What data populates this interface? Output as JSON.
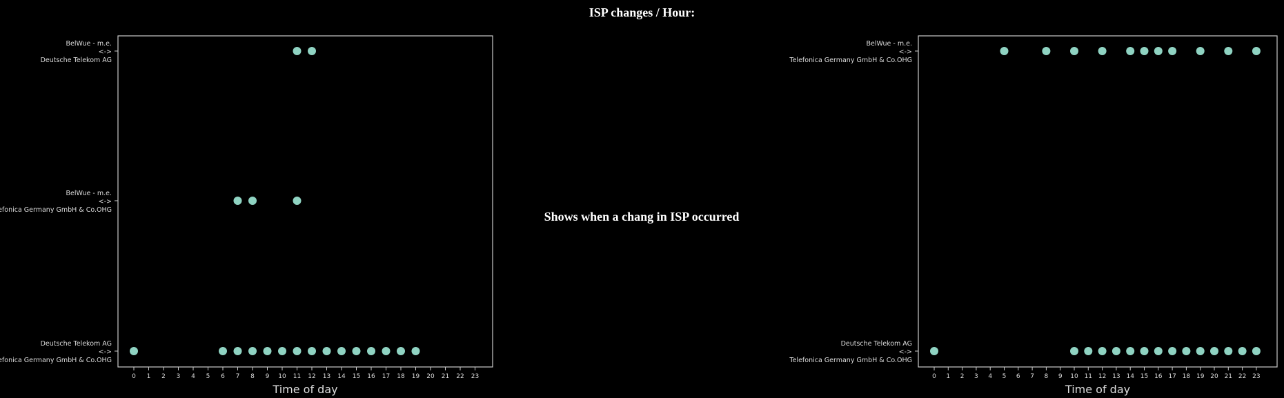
{
  "title": "ISP changes / Hour:",
  "center_text": "Shows when a chang in ISP occurred",
  "colors": {
    "background": "#000000",
    "axis": "#cccccc",
    "text": "#dddddd",
    "marker": "#8fd3c2"
  },
  "chart_data": [
    {
      "type": "scatter",
      "xlabel": "Time of day",
      "ylabel": "",
      "xlim": [
        -1,
        23
      ],
      "xticks": [
        "0",
        "1",
        "2",
        "3",
        "4",
        "5",
        "6",
        "7",
        "8",
        "9",
        "10",
        "11",
        "12",
        "13",
        "14",
        "15",
        "16",
        "17",
        "18",
        "19",
        "20",
        "21",
        "22",
        "23"
      ],
      "categories": [
        [
          "BelWue - m.e.",
          "<->",
          "Deutsche Telekom AG"
        ],
        [
          "BelWue - m.e.",
          "<->",
          "Telefonica Germany GmbH & Co.OHG"
        ],
        [
          "Deutsche Telekom AG",
          "<->",
          "Telefonica Germany GmbH & Co.OHG"
        ]
      ],
      "series": [
        {
          "category_index": 0,
          "x": [
            11,
            12
          ]
        },
        {
          "category_index": 1,
          "x": [
            7,
            8,
            11
          ]
        },
        {
          "category_index": 2,
          "x": [
            0,
            6,
            7,
            8,
            9,
            10,
            11,
            12,
            13,
            14,
            15,
            16,
            17,
            18,
            19
          ]
        }
      ]
    },
    {
      "type": "scatter",
      "xlabel": "Time of day",
      "ylabel": "",
      "xlim": [
        -1,
        24
      ],
      "xticks": [
        "0",
        "1",
        "2",
        "3",
        "4",
        "5",
        "6",
        "7",
        "8",
        "9",
        "10",
        "11",
        "12",
        "13",
        "14",
        "15",
        "16",
        "17",
        "18",
        "19",
        "20",
        "21",
        "22",
        "23"
      ],
      "categories": [
        [
          "BelWue - m.e.",
          "<->",
          "Telefonica Germany GmbH & Co.OHG"
        ],
        [
          "Deutsche Telekom AG",
          "<->",
          "Telefonica Germany GmbH & Co.OHG"
        ]
      ],
      "series": [
        {
          "category_index": 0,
          "x": [
            5,
            8,
            10,
            12,
            14,
            15,
            16,
            17,
            19,
            21,
            23
          ]
        },
        {
          "category_index": 1,
          "x": [
            0,
            10,
            11,
            12,
            13,
            14,
            15,
            16,
            17,
            18,
            19,
            20,
            21,
            22,
            23
          ]
        }
      ]
    }
  ]
}
